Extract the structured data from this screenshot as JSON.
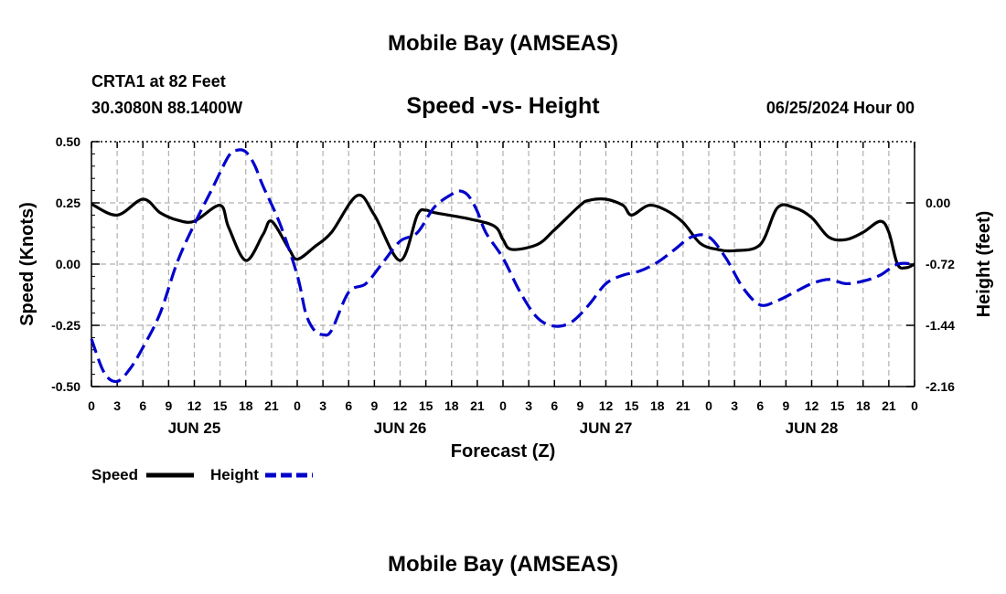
{
  "header": {
    "title_top": "Mobile Bay (AMSEAS)",
    "station": "CRTA1 at 82 Feet",
    "coords": "30.3080N  88.1400W",
    "chart_title": "Speed -vs- Height",
    "date": "06/25/2024 Hour 00",
    "title_bottom": "Mobile Bay (AMSEAS)"
  },
  "chart_data": {
    "type": "line",
    "title": "Speed -vs- Height",
    "xlabel": "Forecast (Z)",
    "ylabel_left": "Speed (Knots)",
    "ylabel_right": "Height (feet)",
    "x_range_hours": [
      0,
      96
    ],
    "x_tick_labels": [
      "0",
      "3",
      "6",
      "9",
      "12",
      "15",
      "18",
      "21",
      "0",
      "3",
      "6",
      "9",
      "12",
      "15",
      "18",
      "21",
      "0",
      "3",
      "6",
      "9",
      "12",
      "15",
      "18",
      "21",
      "0",
      "3",
      "6",
      "9",
      "12",
      "15",
      "18",
      "21",
      "0"
    ],
    "day_labels": [
      {
        "label": "JUN 25",
        "hour": 12
      },
      {
        "label": "JUN 26",
        "hour": 36
      },
      {
        "label": "JUN 27",
        "hour": 60
      },
      {
        "label": "JUN 28",
        "hour": 84
      }
    ],
    "y_left": {
      "min": -0.5,
      "max": 0.5,
      "ticks": [
        "0.50",
        "0.25",
        "0.00",
        "-0.25",
        "-0.50"
      ],
      "tick_values": [
        0.5,
        0.25,
        0,
        -0.25,
        -0.5
      ]
    },
    "y_right": {
      "min": -2.16,
      "max": 0.72,
      "ticks": [
        "0.00",
        "-0.72",
        "-1.44",
        "-2.16"
      ],
      "tick_values": [
        0,
        -0.72,
        -1.44,
        -2.16
      ]
    },
    "grid": true,
    "legend_placement": "bottom-left",
    "series": [
      {
        "name": "Speed",
        "axis": "left",
        "color": "#000000",
        "style": "solid",
        "x": [
          0,
          3,
          6,
          8,
          10,
          12,
          15,
          16,
          18,
          20,
          21,
          23,
          24,
          26,
          28,
          31,
          33,
          36,
          38,
          39,
          40,
          44,
          47,
          48,
          49,
          52,
          54,
          57,
          58,
          60,
          62,
          63,
          65,
          67,
          69,
          71,
          73,
          75,
          78,
          80,
          82,
          84,
          86,
          88,
          90,
          92,
          93,
          94,
          95,
          96
        ],
        "y": [
          0.245,
          0.2,
          0.265,
          0.21,
          0.18,
          0.175,
          0.24,
          0.15,
          0.015,
          0.12,
          0.175,
          0.065,
          0.02,
          0.07,
          0.13,
          0.28,
          0.2,
          0.015,
          0.2,
          0.22,
          0.21,
          0.185,
          0.155,
          0.1,
          0.06,
          0.08,
          0.14,
          0.24,
          0.26,
          0.265,
          0.24,
          0.2,
          0.24,
          0.22,
          0.17,
          0.085,
          0.06,
          0.055,
          0.08,
          0.23,
          0.23,
          0.19,
          0.11,
          0.1,
          0.13,
          0.175,
          0.13,
          0.0,
          -0.015,
          0.0
        ]
      },
      {
        "name": "Height",
        "axis": "right",
        "color": "#0000cc",
        "style": "dashed",
        "x": [
          0,
          1.5,
          3,
          4.5,
          6,
          8,
          10,
          12,
          14,
          16,
          17,
          18,
          19,
          20,
          22,
          24,
          25,
          26,
          27,
          28,
          30,
          32,
          34,
          36,
          38,
          40,
          42,
          43,
          44,
          45,
          46,
          48,
          50,
          52,
          54,
          56,
          58,
          60,
          62,
          64,
          66,
          68,
          70,
          72,
          74,
          76,
          78,
          80,
          82,
          84,
          86,
          88,
          90,
          92,
          94,
          96
        ],
        "y": [
          -1.6,
          -2.0,
          -2.1,
          -1.95,
          -1.7,
          -1.3,
          -0.7,
          -0.25,
          0.15,
          0.55,
          0.62,
          0.6,
          0.45,
          0.2,
          -0.25,
          -0.85,
          -1.3,
          -1.5,
          -1.55,
          -1.5,
          -1.05,
          -0.95,
          -0.7,
          -0.45,
          -0.35,
          -0.05,
          0.1,
          0.14,
          0.08,
          -0.1,
          -0.35,
          -0.65,
          -1.05,
          -1.35,
          -1.45,
          -1.4,
          -1.2,
          -0.95,
          -0.85,
          -0.8,
          -0.7,
          -0.55,
          -0.4,
          -0.4,
          -0.65,
          -1.0,
          -1.2,
          -1.15,
          -1.05,
          -0.95,
          -0.9,
          -0.95,
          -0.92,
          -0.85,
          -0.72,
          -0.72
        ]
      }
    ]
  },
  "legend": {
    "speed_label": "Speed",
    "height_label": "Height"
  }
}
